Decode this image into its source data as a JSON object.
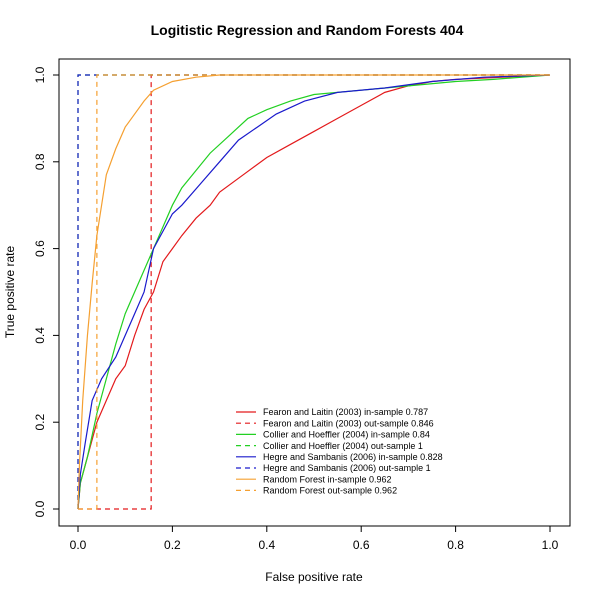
{
  "chart_data": {
    "type": "line",
    "title": "Logitistic Regression and Random Forests 404",
    "xlabel": "False positive rate",
    "ylabel": "True positive rate",
    "xlim": [
      0,
      1
    ],
    "ylim": [
      0,
      1
    ],
    "x_ticks": [
      "0.0",
      "0.2",
      "0.4",
      "0.6",
      "0.8",
      "1.0"
    ],
    "y_ticks": [
      "0.0",
      "0.2",
      "0.4",
      "0.6",
      "0.8",
      "1.0"
    ],
    "grid": false,
    "legend_position": "bottom-center",
    "series": [
      {
        "name": "Fearon and Laitin (2003) in-sample 0.787",
        "color": "#e31a1c",
        "dash": "solid",
        "points": [
          [
            0,
            0
          ],
          [
            0.005,
            0.06
          ],
          [
            0.02,
            0.12
          ],
          [
            0.04,
            0.2
          ],
          [
            0.06,
            0.25
          ],
          [
            0.08,
            0.3
          ],
          [
            0.1,
            0.33
          ],
          [
            0.12,
            0.4
          ],
          [
            0.14,
            0.46
          ],
          [
            0.16,
            0.5
          ],
          [
            0.18,
            0.57
          ],
          [
            0.2,
            0.6
          ],
          [
            0.22,
            0.63
          ],
          [
            0.25,
            0.67
          ],
          [
            0.28,
            0.7
          ],
          [
            0.3,
            0.73
          ],
          [
            0.35,
            0.77
          ],
          [
            0.4,
            0.81
          ],
          [
            0.45,
            0.84
          ],
          [
            0.5,
            0.87
          ],
          [
            0.55,
            0.9
          ],
          [
            0.6,
            0.93
          ],
          [
            0.65,
            0.96
          ],
          [
            0.7,
            0.975
          ],
          [
            0.75,
            0.985
          ],
          [
            0.8,
            0.99
          ],
          [
            0.9,
            0.995
          ],
          [
            1,
            1
          ]
        ]
      },
      {
        "name": "Fearon and Laitin (2003) out-sample 0.846",
        "color": "#e31a1c",
        "dash": "dashed",
        "points": [
          [
            0,
            0
          ],
          [
            0.155,
            0
          ],
          [
            0.155,
            1
          ],
          [
            1,
            1
          ]
        ]
      },
      {
        "name": "Collier and Hoeffler (2004) in-sample 0.84",
        "color": "#22d022",
        "dash": "solid",
        "points": [
          [
            0,
            0
          ],
          [
            0.005,
            0.06
          ],
          [
            0.02,
            0.12
          ],
          [
            0.04,
            0.22
          ],
          [
            0.06,
            0.3
          ],
          [
            0.08,
            0.38
          ],
          [
            0.1,
            0.45
          ],
          [
            0.12,
            0.5
          ],
          [
            0.14,
            0.55
          ],
          [
            0.16,
            0.6
          ],
          [
            0.18,
            0.65
          ],
          [
            0.2,
            0.7
          ],
          [
            0.22,
            0.74
          ],
          [
            0.25,
            0.78
          ],
          [
            0.28,
            0.82
          ],
          [
            0.32,
            0.86
          ],
          [
            0.36,
            0.9
          ],
          [
            0.4,
            0.92
          ],
          [
            0.45,
            0.94
          ],
          [
            0.5,
            0.955
          ],
          [
            0.6,
            0.965
          ],
          [
            0.7,
            0.975
          ],
          [
            0.8,
            0.985
          ],
          [
            0.88,
            0.99
          ],
          [
            1,
            1
          ]
        ]
      },
      {
        "name": "Collier and Hoeffler (2004) out-sample 1",
        "color": "#22d022",
        "dash": "dashed",
        "points": [
          [
            0,
            0
          ],
          [
            0,
            1
          ],
          [
            1,
            1
          ]
        ]
      },
      {
        "name": "Hegre and Sambanis (2006) in-sample 0.828",
        "color": "#1a1acc",
        "dash": "solid",
        "points": [
          [
            0,
            0
          ],
          [
            0.005,
            0.08
          ],
          [
            0.015,
            0.15
          ],
          [
            0.03,
            0.25
          ],
          [
            0.05,
            0.3
          ],
          [
            0.08,
            0.35
          ],
          [
            0.1,
            0.4
          ],
          [
            0.12,
            0.45
          ],
          [
            0.14,
            0.5
          ],
          [
            0.16,
            0.6
          ],
          [
            0.18,
            0.64
          ],
          [
            0.2,
            0.68
          ],
          [
            0.22,
            0.7
          ],
          [
            0.26,
            0.75
          ],
          [
            0.3,
            0.8
          ],
          [
            0.34,
            0.85
          ],
          [
            0.38,
            0.88
          ],
          [
            0.42,
            0.91
          ],
          [
            0.48,
            0.94
          ],
          [
            0.55,
            0.96
          ],
          [
            0.65,
            0.97
          ],
          [
            0.75,
            0.985
          ],
          [
            0.86,
            0.995
          ],
          [
            1,
            1
          ]
        ]
      },
      {
        "name": "Hegre and Sambanis (2006) out-sample 1",
        "color": "#1a1acc",
        "dash": "dashed",
        "points": [
          [
            0,
            0
          ],
          [
            0,
            1
          ],
          [
            1,
            1
          ]
        ]
      },
      {
        "name": "Random Forest in-sample 0.962",
        "color": "#f5a031",
        "dash": "solid",
        "points": [
          [
            0,
            0
          ],
          [
            0.003,
            0.1
          ],
          [
            0.01,
            0.25
          ],
          [
            0.02,
            0.4
          ],
          [
            0.03,
            0.52
          ],
          [
            0.04,
            0.63
          ],
          [
            0.05,
            0.7
          ],
          [
            0.06,
            0.77
          ],
          [
            0.08,
            0.83
          ],
          [
            0.1,
            0.88
          ],
          [
            0.12,
            0.91
          ],
          [
            0.14,
            0.94
          ],
          [
            0.16,
            0.965
          ],
          [
            0.2,
            0.985
          ],
          [
            0.25,
            0.995
          ],
          [
            0.3,
            1
          ],
          [
            1,
            1
          ]
        ]
      },
      {
        "name": "Random Forest out-sample 0.962",
        "color": "#f5a031",
        "dash": "dashed",
        "points": [
          [
            0,
            0
          ],
          [
            0.04,
            0
          ],
          [
            0.04,
            1
          ],
          [
            1,
            1
          ]
        ]
      }
    ]
  }
}
